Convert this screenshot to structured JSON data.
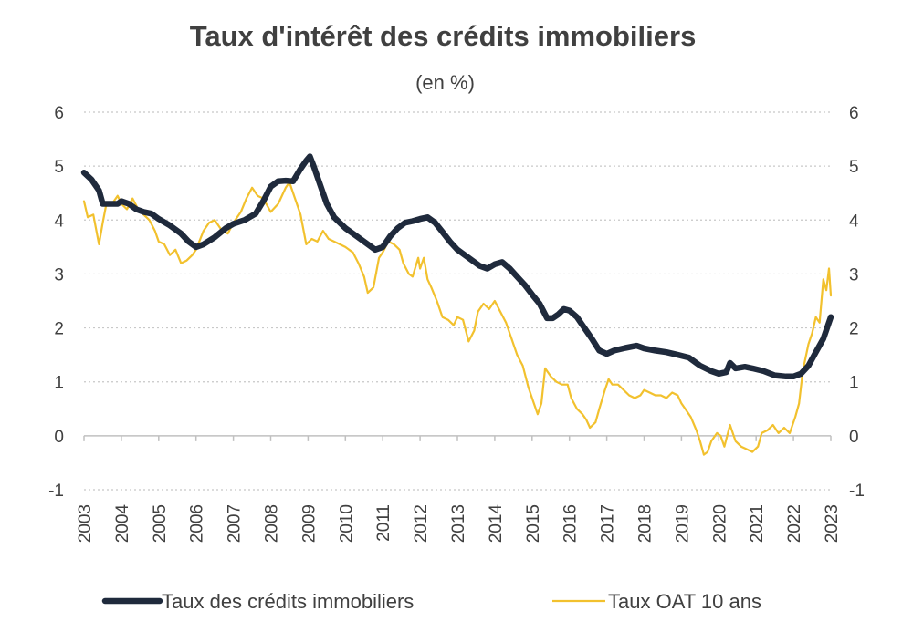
{
  "chart_data": {
    "type": "line",
    "title": "Taux d'intérêt des crédits immobiliers",
    "subtitle": "(en %)",
    "xlabel": "",
    "ylabel": "",
    "ylim": [
      -1,
      6
    ],
    "xlim": [
      2003,
      2023
    ],
    "y_ticks": [
      "-1",
      "0",
      "1",
      "2",
      "3",
      "4",
      "5",
      "6"
    ],
    "x_ticks": [
      "2003",
      "2004",
      "2005",
      "2006",
      "2007",
      "2008",
      "2009",
      "2010",
      "2011",
      "2012",
      "2013",
      "2014",
      "2015",
      "2016",
      "2017",
      "2018",
      "2019",
      "2020",
      "2021",
      "2022",
      "2023"
    ],
    "grid": true,
    "legend_position": "bottom",
    "series": [
      {
        "name": "Taux des crédits immobiliers",
        "color": "#1f2a3c",
        "points": [
          [
            2003.0,
            4.88
          ],
          [
            2003.2,
            4.75
          ],
          [
            2003.4,
            4.55
          ],
          [
            2003.5,
            4.3
          ],
          [
            2003.7,
            4.3
          ],
          [
            2003.9,
            4.3
          ],
          [
            2004.0,
            4.35
          ],
          [
            2004.2,
            4.3
          ],
          [
            2004.4,
            4.2
          ],
          [
            2004.6,
            4.15
          ],
          [
            2004.8,
            4.12
          ],
          [
            2005.0,
            4.02
          ],
          [
            2005.3,
            3.9
          ],
          [
            2005.6,
            3.75
          ],
          [
            2005.8,
            3.6
          ],
          [
            2006.0,
            3.5
          ],
          [
            2006.2,
            3.55
          ],
          [
            2006.5,
            3.68
          ],
          [
            2006.8,
            3.85
          ],
          [
            2007.0,
            3.93
          ],
          [
            2007.3,
            4.0
          ],
          [
            2007.6,
            4.12
          ],
          [
            2007.8,
            4.35
          ],
          [
            2008.0,
            4.62
          ],
          [
            2008.2,
            4.72
          ],
          [
            2008.4,
            4.73
          ],
          [
            2008.6,
            4.72
          ],
          [
            2008.8,
            4.95
          ],
          [
            2008.95,
            5.1
          ],
          [
            2009.05,
            5.18
          ],
          [
            2009.15,
            5.0
          ],
          [
            2009.3,
            4.7
          ],
          [
            2009.5,
            4.3
          ],
          [
            2009.7,
            4.05
          ],
          [
            2010.0,
            3.85
          ],
          [
            2010.3,
            3.7
          ],
          [
            2010.6,
            3.55
          ],
          [
            2010.8,
            3.45
          ],
          [
            2011.0,
            3.5
          ],
          [
            2011.2,
            3.7
          ],
          [
            2011.4,
            3.85
          ],
          [
            2011.6,
            3.95
          ],
          [
            2011.8,
            3.98
          ],
          [
            2012.0,
            4.02
          ],
          [
            2012.2,
            4.05
          ],
          [
            2012.4,
            3.95
          ],
          [
            2012.6,
            3.78
          ],
          [
            2012.8,
            3.6
          ],
          [
            2013.0,
            3.45
          ],
          [
            2013.3,
            3.3
          ],
          [
            2013.6,
            3.15
          ],
          [
            2013.8,
            3.1
          ],
          [
            2014.0,
            3.18
          ],
          [
            2014.2,
            3.22
          ],
          [
            2014.4,
            3.1
          ],
          [
            2014.6,
            2.95
          ],
          [
            2014.8,
            2.8
          ],
          [
            2015.0,
            2.62
          ],
          [
            2015.2,
            2.45
          ],
          [
            2015.4,
            2.18
          ],
          [
            2015.55,
            2.18
          ],
          [
            2015.7,
            2.25
          ],
          [
            2015.85,
            2.35
          ],
          [
            2016.0,
            2.32
          ],
          [
            2016.2,
            2.2
          ],
          [
            2016.4,
            2.0
          ],
          [
            2016.6,
            1.8
          ],
          [
            2016.8,
            1.58
          ],
          [
            2017.0,
            1.52
          ],
          [
            2017.2,
            1.58
          ],
          [
            2017.5,
            1.63
          ],
          [
            2017.8,
            1.67
          ],
          [
            2018.0,
            1.62
          ],
          [
            2018.3,
            1.58
          ],
          [
            2018.6,
            1.55
          ],
          [
            2018.9,
            1.5
          ],
          [
            2019.2,
            1.45
          ],
          [
            2019.5,
            1.3
          ],
          [
            2019.8,
            1.2
          ],
          [
            2020.0,
            1.15
          ],
          [
            2020.2,
            1.18
          ],
          [
            2020.3,
            1.35
          ],
          [
            2020.45,
            1.25
          ],
          [
            2020.7,
            1.28
          ],
          [
            2020.9,
            1.25
          ],
          [
            2021.2,
            1.2
          ],
          [
            2021.5,
            1.12
          ],
          [
            2021.8,
            1.1
          ],
          [
            2022.0,
            1.1
          ],
          [
            2022.2,
            1.15
          ],
          [
            2022.4,
            1.3
          ],
          [
            2022.6,
            1.55
          ],
          [
            2022.8,
            1.8
          ],
          [
            2023.0,
            2.2
          ]
        ]
      },
      {
        "name": "Taux OAT 10 ans",
        "color": "#f2c12e",
        "points": [
          [
            2003.0,
            4.35
          ],
          [
            2003.1,
            4.05
          ],
          [
            2003.25,
            4.1
          ],
          [
            2003.4,
            3.55
          ],
          [
            2003.5,
            3.95
          ],
          [
            2003.6,
            4.3
          ],
          [
            2003.75,
            4.3
          ],
          [
            2003.9,
            4.45
          ],
          [
            2004.0,
            4.3
          ],
          [
            2004.15,
            4.2
          ],
          [
            2004.3,
            4.4
          ],
          [
            2004.45,
            4.2
          ],
          [
            2004.6,
            4.1
          ],
          [
            2004.75,
            4.0
          ],
          [
            2004.9,
            3.8
          ],
          [
            2005.0,
            3.6
          ],
          [
            2005.15,
            3.55
          ],
          [
            2005.3,
            3.35
          ],
          [
            2005.45,
            3.45
          ],
          [
            2005.6,
            3.2
          ],
          [
            2005.75,
            3.25
          ],
          [
            2005.9,
            3.35
          ],
          [
            2006.0,
            3.45
          ],
          [
            2006.2,
            3.8
          ],
          [
            2006.35,
            3.95
          ],
          [
            2006.5,
            4.0
          ],
          [
            2006.7,
            3.8
          ],
          [
            2006.85,
            3.75
          ],
          [
            2007.0,
            3.95
          ],
          [
            2007.2,
            4.15
          ],
          [
            2007.35,
            4.4
          ],
          [
            2007.5,
            4.6
          ],
          [
            2007.65,
            4.45
          ],
          [
            2007.8,
            4.4
          ],
          [
            2008.0,
            4.15
          ],
          [
            2008.2,
            4.3
          ],
          [
            2008.4,
            4.6
          ],
          [
            2008.5,
            4.7
          ],
          [
            2008.65,
            4.4
          ],
          [
            2008.8,
            4.1
          ],
          [
            2008.95,
            3.55
          ],
          [
            2009.1,
            3.65
          ],
          [
            2009.25,
            3.6
          ],
          [
            2009.4,
            3.8
          ],
          [
            2009.55,
            3.65
          ],
          [
            2009.7,
            3.6
          ],
          [
            2009.85,
            3.55
          ],
          [
            2010.0,
            3.5
          ],
          [
            2010.2,
            3.4
          ],
          [
            2010.35,
            3.2
          ],
          [
            2010.5,
            2.95
          ],
          [
            2010.6,
            2.65
          ],
          [
            2010.75,
            2.75
          ],
          [
            2010.9,
            3.3
          ],
          [
            2011.0,
            3.4
          ],
          [
            2011.15,
            3.6
          ],
          [
            2011.3,
            3.55
          ],
          [
            2011.45,
            3.45
          ],
          [
            2011.55,
            3.2
          ],
          [
            2011.7,
            3.0
          ],
          [
            2011.8,
            2.95
          ],
          [
            2011.95,
            3.3
          ],
          [
            2012.0,
            3.1
          ],
          [
            2012.1,
            3.3
          ],
          [
            2012.2,
            2.9
          ],
          [
            2012.3,
            2.75
          ],
          [
            2012.45,
            2.5
          ],
          [
            2012.6,
            2.2
          ],
          [
            2012.75,
            2.15
          ],
          [
            2012.9,
            2.05
          ],
          [
            2013.0,
            2.2
          ],
          [
            2013.15,
            2.15
          ],
          [
            2013.3,
            1.75
          ],
          [
            2013.45,
            1.95
          ],
          [
            2013.55,
            2.3
          ],
          [
            2013.7,
            2.45
          ],
          [
            2013.85,
            2.35
          ],
          [
            2014.0,
            2.5
          ],
          [
            2014.15,
            2.3
          ],
          [
            2014.3,
            2.1
          ],
          [
            2014.45,
            1.8
          ],
          [
            2014.6,
            1.5
          ],
          [
            2014.75,
            1.3
          ],
          [
            2014.9,
            0.9
          ],
          [
            2015.05,
            0.6
          ],
          [
            2015.15,
            0.4
          ],
          [
            2015.25,
            0.6
          ],
          [
            2015.35,
            1.25
          ],
          [
            2015.5,
            1.1
          ],
          [
            2015.65,
            1.0
          ],
          [
            2015.8,
            0.95
          ],
          [
            2015.95,
            0.95
          ],
          [
            2016.05,
            0.7
          ],
          [
            2016.2,
            0.5
          ],
          [
            2016.35,
            0.4
          ],
          [
            2016.45,
            0.3
          ],
          [
            2016.55,
            0.15
          ],
          [
            2016.7,
            0.25
          ],
          [
            2016.8,
            0.5
          ],
          [
            2016.95,
            0.85
          ],
          [
            2017.05,
            1.05
          ],
          [
            2017.15,
            0.95
          ],
          [
            2017.3,
            0.95
          ],
          [
            2017.45,
            0.85
          ],
          [
            2017.6,
            0.75
          ],
          [
            2017.75,
            0.7
          ],
          [
            2017.9,
            0.75
          ],
          [
            2018.0,
            0.85
          ],
          [
            2018.15,
            0.8
          ],
          [
            2018.3,
            0.75
          ],
          [
            2018.45,
            0.75
          ],
          [
            2018.6,
            0.7
          ],
          [
            2018.75,
            0.8
          ],
          [
            2018.9,
            0.75
          ],
          [
            2019.0,
            0.6
          ],
          [
            2019.1,
            0.5
          ],
          [
            2019.25,
            0.35
          ],
          [
            2019.4,
            0.1
          ],
          [
            2019.5,
            -0.1
          ],
          [
            2019.6,
            -0.35
          ],
          [
            2019.7,
            -0.3
          ],
          [
            2019.8,
            -0.1
          ],
          [
            2019.95,
            0.05
          ],
          [
            2020.05,
            0.0
          ],
          [
            2020.15,
            -0.2
          ],
          [
            2020.3,
            0.2
          ],
          [
            2020.45,
            -0.1
          ],
          [
            2020.6,
            -0.2
          ],
          [
            2020.75,
            -0.25
          ],
          [
            2020.9,
            -0.3
          ],
          [
            2021.05,
            -0.2
          ],
          [
            2021.15,
            0.05
          ],
          [
            2021.3,
            0.1
          ],
          [
            2021.45,
            0.2
          ],
          [
            2021.6,
            0.05
          ],
          [
            2021.75,
            0.15
          ],
          [
            2021.9,
            0.05
          ],
          [
            2022.05,
            0.35
          ],
          [
            2022.15,
            0.6
          ],
          [
            2022.25,
            1.2
          ],
          [
            2022.4,
            1.7
          ],
          [
            2022.5,
            1.9
          ],
          [
            2022.6,
            2.2
          ],
          [
            2022.7,
            2.1
          ],
          [
            2022.8,
            2.9
          ],
          [
            2022.88,
            2.7
          ],
          [
            2022.95,
            3.1
          ],
          [
            2023.0,
            2.6
          ]
        ]
      }
    ]
  }
}
